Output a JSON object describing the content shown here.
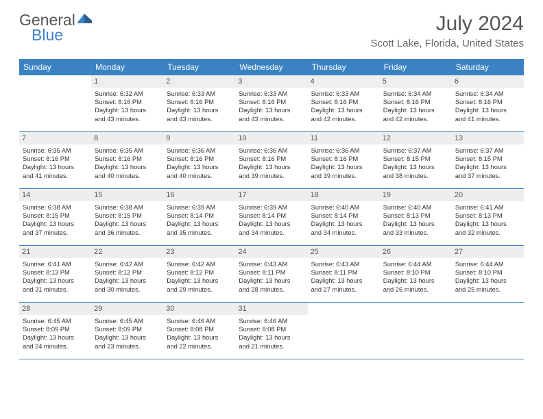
{
  "brand": {
    "word1": "General",
    "word2": "Blue",
    "word1_color": "#555555",
    "word2_color": "#3b82c4",
    "mark_color": "#3b82c4"
  },
  "title": "July 2024",
  "location": "Scott Lake, Florida, United States",
  "colors": {
    "header_bg": "#3b82c4",
    "header_text": "#ffffff",
    "daynum_bg": "#eeeeee",
    "daynum_text": "#555555",
    "body_text": "#333333",
    "rule": "#3b82c4",
    "page_bg": "#ffffff"
  },
  "fonts": {
    "title_size_pt": 22,
    "subtitle_size_pt": 11,
    "dayheader_size_pt": 9,
    "cell_size_pt": 7
  },
  "day_headers": [
    "Sunday",
    "Monday",
    "Tuesday",
    "Wednesday",
    "Thursday",
    "Friday",
    "Saturday"
  ],
  "weeks": [
    [
      {
        "n": "",
        "lines": []
      },
      {
        "n": "1",
        "lines": [
          "Sunrise: 6:32 AM",
          "Sunset: 8:16 PM",
          "Daylight: 13 hours",
          "and 43 minutes."
        ]
      },
      {
        "n": "2",
        "lines": [
          "Sunrise: 6:33 AM",
          "Sunset: 8:16 PM",
          "Daylight: 13 hours",
          "and 43 minutes."
        ]
      },
      {
        "n": "3",
        "lines": [
          "Sunrise: 6:33 AM",
          "Sunset: 8:16 PM",
          "Daylight: 13 hours",
          "and 43 minutes."
        ]
      },
      {
        "n": "4",
        "lines": [
          "Sunrise: 6:33 AM",
          "Sunset: 8:16 PM",
          "Daylight: 13 hours",
          "and 42 minutes."
        ]
      },
      {
        "n": "5",
        "lines": [
          "Sunrise: 6:34 AM",
          "Sunset: 8:16 PM",
          "Daylight: 13 hours",
          "and 42 minutes."
        ]
      },
      {
        "n": "6",
        "lines": [
          "Sunrise: 6:34 AM",
          "Sunset: 8:16 PM",
          "Daylight: 13 hours",
          "and 41 minutes."
        ]
      }
    ],
    [
      {
        "n": "7",
        "lines": [
          "Sunrise: 6:35 AM",
          "Sunset: 8:16 PM",
          "Daylight: 13 hours",
          "and 41 minutes."
        ]
      },
      {
        "n": "8",
        "lines": [
          "Sunrise: 6:35 AM",
          "Sunset: 8:16 PM",
          "Daylight: 13 hours",
          "and 40 minutes."
        ]
      },
      {
        "n": "9",
        "lines": [
          "Sunrise: 6:36 AM",
          "Sunset: 8:16 PM",
          "Daylight: 13 hours",
          "and 40 minutes."
        ]
      },
      {
        "n": "10",
        "lines": [
          "Sunrise: 6:36 AM",
          "Sunset: 8:16 PM",
          "Daylight: 13 hours",
          "and 39 minutes."
        ]
      },
      {
        "n": "11",
        "lines": [
          "Sunrise: 6:36 AM",
          "Sunset: 8:16 PM",
          "Daylight: 13 hours",
          "and 39 minutes."
        ]
      },
      {
        "n": "12",
        "lines": [
          "Sunrise: 6:37 AM",
          "Sunset: 8:15 PM",
          "Daylight: 13 hours",
          "and 38 minutes."
        ]
      },
      {
        "n": "13",
        "lines": [
          "Sunrise: 6:37 AM",
          "Sunset: 8:15 PM",
          "Daylight: 13 hours",
          "and 37 minutes."
        ]
      }
    ],
    [
      {
        "n": "14",
        "lines": [
          "Sunrise: 6:38 AM",
          "Sunset: 8:15 PM",
          "Daylight: 13 hours",
          "and 37 minutes."
        ]
      },
      {
        "n": "15",
        "lines": [
          "Sunrise: 6:38 AM",
          "Sunset: 8:15 PM",
          "Daylight: 13 hours",
          "and 36 minutes."
        ]
      },
      {
        "n": "16",
        "lines": [
          "Sunrise: 6:39 AM",
          "Sunset: 8:14 PM",
          "Daylight: 13 hours",
          "and 35 minutes."
        ]
      },
      {
        "n": "17",
        "lines": [
          "Sunrise: 6:39 AM",
          "Sunset: 8:14 PM",
          "Daylight: 13 hours",
          "and 34 minutes."
        ]
      },
      {
        "n": "18",
        "lines": [
          "Sunrise: 6:40 AM",
          "Sunset: 8:14 PM",
          "Daylight: 13 hours",
          "and 34 minutes."
        ]
      },
      {
        "n": "19",
        "lines": [
          "Sunrise: 6:40 AM",
          "Sunset: 8:13 PM",
          "Daylight: 13 hours",
          "and 33 minutes."
        ]
      },
      {
        "n": "20",
        "lines": [
          "Sunrise: 6:41 AM",
          "Sunset: 8:13 PM",
          "Daylight: 13 hours",
          "and 32 minutes."
        ]
      }
    ],
    [
      {
        "n": "21",
        "lines": [
          "Sunrise: 6:41 AM",
          "Sunset: 8:13 PM",
          "Daylight: 13 hours",
          "and 31 minutes."
        ]
      },
      {
        "n": "22",
        "lines": [
          "Sunrise: 6:42 AM",
          "Sunset: 8:12 PM",
          "Daylight: 13 hours",
          "and 30 minutes."
        ]
      },
      {
        "n": "23",
        "lines": [
          "Sunrise: 6:42 AM",
          "Sunset: 8:12 PM",
          "Daylight: 13 hours",
          "and 29 minutes."
        ]
      },
      {
        "n": "24",
        "lines": [
          "Sunrise: 6:43 AM",
          "Sunset: 8:11 PM",
          "Daylight: 13 hours",
          "and 28 minutes."
        ]
      },
      {
        "n": "25",
        "lines": [
          "Sunrise: 6:43 AM",
          "Sunset: 8:11 PM",
          "Daylight: 13 hours",
          "and 27 minutes."
        ]
      },
      {
        "n": "26",
        "lines": [
          "Sunrise: 6:44 AM",
          "Sunset: 8:10 PM",
          "Daylight: 13 hours",
          "and 26 minutes."
        ]
      },
      {
        "n": "27",
        "lines": [
          "Sunrise: 6:44 AM",
          "Sunset: 8:10 PM",
          "Daylight: 13 hours",
          "and 25 minutes."
        ]
      }
    ],
    [
      {
        "n": "28",
        "lines": [
          "Sunrise: 6:45 AM",
          "Sunset: 8:09 PM",
          "Daylight: 13 hours",
          "and 24 minutes."
        ]
      },
      {
        "n": "29",
        "lines": [
          "Sunrise: 6:45 AM",
          "Sunset: 8:09 PM",
          "Daylight: 13 hours",
          "and 23 minutes."
        ]
      },
      {
        "n": "30",
        "lines": [
          "Sunrise: 6:46 AM",
          "Sunset: 8:08 PM",
          "Daylight: 13 hours",
          "and 22 minutes."
        ]
      },
      {
        "n": "31",
        "lines": [
          "Sunrise: 6:46 AM",
          "Sunset: 8:08 PM",
          "Daylight: 13 hours",
          "and 21 minutes."
        ]
      },
      {
        "n": "",
        "lines": []
      },
      {
        "n": "",
        "lines": []
      },
      {
        "n": "",
        "lines": []
      }
    ]
  ]
}
